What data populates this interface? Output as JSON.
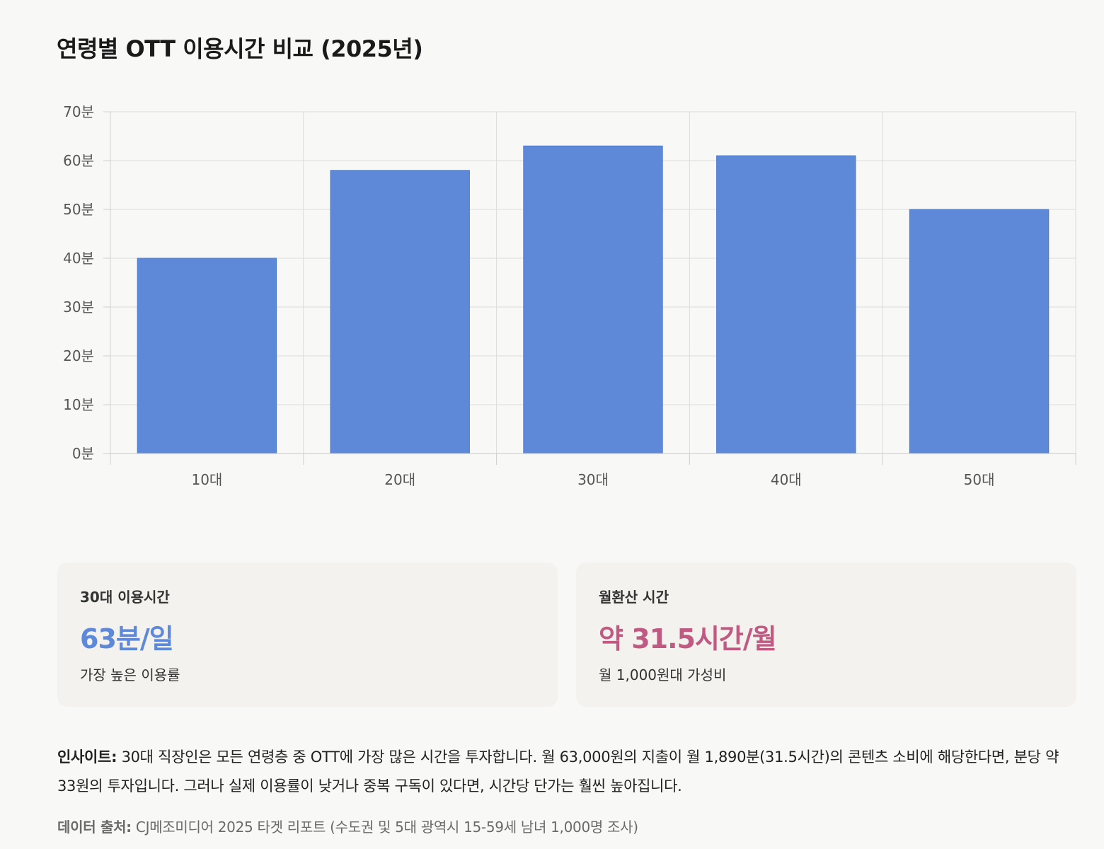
{
  "page": {
    "title": "연령별 OTT 이용시간 비교 (2025년)"
  },
  "chart_data": {
    "type": "bar",
    "categories": [
      "10대",
      "20대",
      "30대",
      "40대",
      "50대"
    ],
    "values": [
      40,
      58,
      63,
      61,
      50
    ],
    "unit_suffix": "분",
    "ylim": [
      0,
      70
    ],
    "yticks": [
      0,
      10,
      20,
      30,
      40,
      50,
      60,
      70
    ],
    "ytick_labels": [
      "0분",
      "10분",
      "20분",
      "30분",
      "40분",
      "50분",
      "60분",
      "70분"
    ],
    "grid": true,
    "legend": "none",
    "bar_color": "#5e88d8"
  },
  "cards": [
    {
      "label": "30대 이용시간",
      "value": "63분/일",
      "note": "가장 높은 이용률",
      "value_color": "#5e88d8"
    },
    {
      "label": "월환산 시간",
      "value": "약 31.5시간/월",
      "note": "월 1,000원대 가성비",
      "value_color": "#c05a82"
    }
  ],
  "insight": {
    "lead": "인사이트:",
    "text": " 30대 직장인은 모든 연령층 중 OTT에 가장 많은 시간을 투자합니다. 월 63,000원의 지출이 월 1,890분(31.5시간)의 콘텐츠 소비에 해당한다면, 분당 약 33원의 투자입니다. 그러나 실제 이용률이 낮거나 중복 구독이 있다면, 시간당 단가는 훨씬 높아집니다."
  },
  "source": {
    "lead": "데이터 출처:",
    "text": " CJ메조미디어 2025 타겟 리포트 (수도권 및 5대 광역시 15-59세 남녀 1,000명 조사)"
  }
}
